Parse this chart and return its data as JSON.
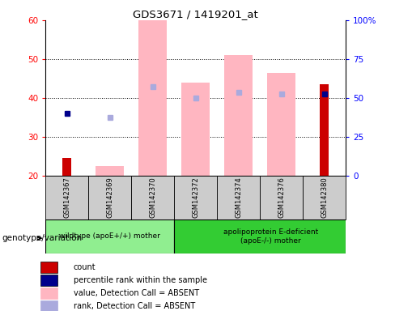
{
  "title": "GDS3671 / 1419201_at",
  "samples": [
    "GSM142367",
    "GSM142369",
    "GSM142370",
    "GSM142372",
    "GSM142374",
    "GSM142376",
    "GSM142380"
  ],
  "ylim_left": [
    20,
    60
  ],
  "ylim_right": [
    0,
    100
  ],
  "yticks_left": [
    20,
    30,
    40,
    50,
    60
  ],
  "yticks_right": [
    0,
    25,
    50,
    75,
    100
  ],
  "yticklabels_right": [
    "0",
    "25",
    "50",
    "75",
    "100%"
  ],
  "count_data": {
    "GSM142367": 24.5,
    "GSM142369": null,
    "GSM142370": null,
    "GSM142372": null,
    "GSM142374": null,
    "GSM142376": null,
    "GSM142380": 43.5
  },
  "percentile_rank_data": {
    "GSM142367": 36,
    "GSM142369": null,
    "GSM142370": null,
    "GSM142372": null,
    "GSM142374": null,
    "GSM142376": null,
    "GSM142380": 41
  },
  "value_absent_data": {
    "GSM142367": null,
    "GSM142369": 22.5,
    "GSM142370": 60,
    "GSM142372": 44,
    "GSM142374": 51,
    "GSM142376": 46.5,
    "GSM142380": null
  },
  "rank_absent_data": {
    "GSM142367": null,
    "GSM142369": 35,
    "GSM142370": 43,
    "GSM142372": 40,
    "GSM142374": 41.5,
    "GSM142376": 41,
    "GSM142380": null
  },
  "count_color": "#CC0000",
  "percentile_color": "#00008B",
  "value_absent_color": "#FFB6C1",
  "rank_absent_color": "#AAAADD",
  "group1_label": "wildtype (apoE+/+) mother",
  "group1_color": "#90EE90",
  "group2_label": "apolipoprotein E-deficient\n(apoE-/-) mother",
  "group2_color": "#33CC33",
  "legend_items": [
    {
      "color": "#CC0000",
      "label": "count"
    },
    {
      "color": "#00008B",
      "label": "percentile rank within the sample"
    },
    {
      "color": "#FFB6C1",
      "label": "value, Detection Call = ABSENT"
    },
    {
      "color": "#AAAADD",
      "label": "rank, Detection Call = ABSENT"
    }
  ],
  "genotype_label": "genotype/variation"
}
